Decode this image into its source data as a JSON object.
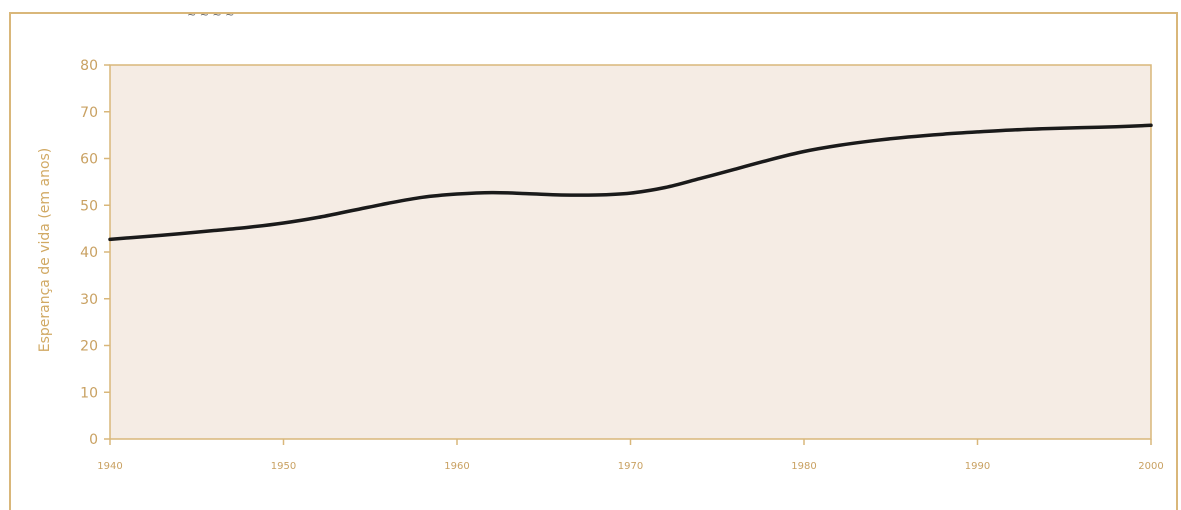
{
  "chart_data": {
    "type": "line",
    "title": "",
    "xlabel": "",
    "ylabel": "Esperança de vida (em anos)",
    "x": [
      1940,
      1942,
      1944,
      1946,
      1948,
      1950,
      1952,
      1954,
      1956,
      1958,
      1960,
      1962,
      1964,
      1966,
      1968,
      1970,
      1972,
      1974,
      1976,
      1978,
      1980,
      1982,
      1984,
      1986,
      1988,
      1990,
      1992,
      1994,
      1996,
      1998,
      2000
    ],
    "series": [
      {
        "values": [
          42.7,
          43.3,
          43.9,
          44.6,
          45.3,
          46.2,
          47.4,
          48.9,
          50.4,
          51.7,
          52.4,
          52.7,
          52.5,
          52.2,
          52.2,
          52.6,
          53.8,
          55.7,
          57.7,
          59.7,
          61.5,
          62.8,
          63.8,
          64.6,
          65.2,
          65.7,
          66.1,
          66.4,
          66.6,
          66.8,
          67.1
        ],
        "color": "#1a1a1a"
      }
    ],
    "xlim": [
      1940,
      2000
    ],
    "ylim": [
      0,
      80
    ],
    "x_ticks": [
      "1940",
      "1950",
      "1960",
      "1970",
      "1980",
      "1990",
      "2000"
    ],
    "y_ticks": [
      "0",
      "10",
      "20",
      "30",
      "40",
      "50",
      "60",
      "70",
      "80"
    ],
    "grid": false,
    "plot_background": "#f5ece4",
    "axis_color": "#d9b77a",
    "tick_label_color": "#c9a162"
  }
}
